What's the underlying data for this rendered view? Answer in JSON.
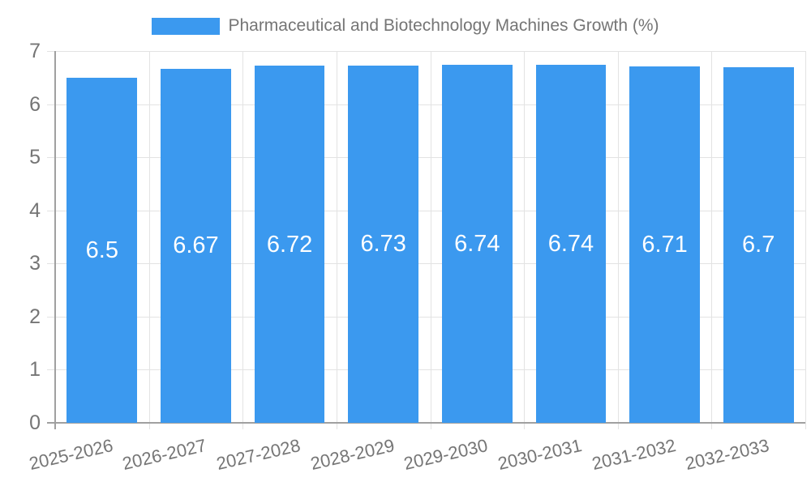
{
  "chart_data": {
    "type": "bar",
    "legend_label": "Pharmaceutical and Biotechnology Machines Growth (%)",
    "legend_position": "top",
    "categories": [
      "2025-2026",
      "2026-2027",
      "2027-2028",
      "2028-2029",
      "2029-2030",
      "2030-2031",
      "2031-2032",
      "2032-2033"
    ],
    "values": [
      6.5,
      6.67,
      6.72,
      6.73,
      6.74,
      6.74,
      6.71,
      6.7
    ],
    "value_labels": [
      "6.5",
      "6.67",
      "6.72",
      "6.73",
      "6.74",
      "6.74",
      "6.71",
      "6.7"
    ],
    "xlabel": "",
    "ylabel": "",
    "ylim": [
      0,
      7
    ],
    "yticks": [
      0,
      1,
      2,
      3,
      4,
      5,
      6,
      7
    ],
    "grid": true,
    "colors": {
      "bar": "#3B99EF",
      "grid": "#E3E3E3",
      "axis": "#A0A0A0",
      "tick_text": "#757575",
      "legend_text": "#757575",
      "value_text": "#FFFFFF",
      "background": "#FFFFFF"
    }
  }
}
